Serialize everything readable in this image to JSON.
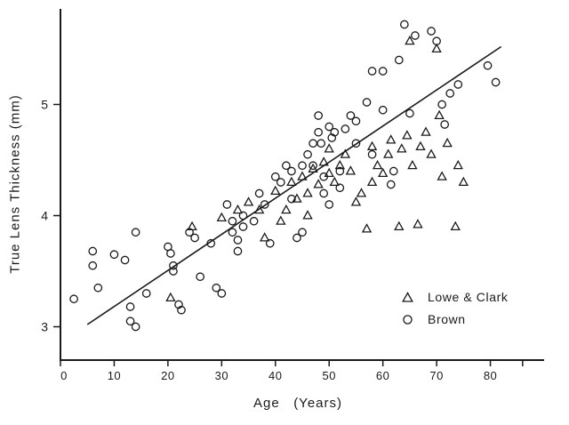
{
  "figure": {
    "background": "#ffffff",
    "ink_color": "#1a1a1a"
  },
  "chart_data": {
    "type": "scatter",
    "title": "",
    "xlabel": "Age   (Years)",
    "ylabel": "True Lens Thickness (mm)",
    "xlim": [
      0,
      90
    ],
    "ylim": [
      2.7,
      5.86
    ],
    "x_ticks": [
      0,
      10,
      20,
      30,
      40,
      50,
      60,
      70,
      80
    ],
    "x_minor_ticks": [
      86
    ],
    "y_ticks": [
      3,
      4,
      5
    ],
    "grid": false,
    "legend_position": "lower-right-inside",
    "series": [
      {
        "name": "Lowe & Clark",
        "marker": "triangle",
        "points": [
          [
            20.5,
            3.26
          ],
          [
            24.5,
            3.9
          ],
          [
            30,
            3.98
          ],
          [
            33,
            4.05
          ],
          [
            35,
            4.12
          ],
          [
            37,
            4.05
          ],
          [
            38,
            3.8
          ],
          [
            40,
            4.22
          ],
          [
            41,
            3.95
          ],
          [
            42,
            4.05
          ],
          [
            43,
            4.3
          ],
          [
            44,
            4.15
          ],
          [
            45,
            4.35
          ],
          [
            46,
            4.2
          ],
          [
            46,
            4.0
          ],
          [
            47,
            4.42
          ],
          [
            48,
            4.28
          ],
          [
            49,
            4.48
          ],
          [
            50,
            4.6
          ],
          [
            50,
            4.38
          ],
          [
            51,
            4.3
          ],
          [
            52,
            4.45
          ],
          [
            53,
            4.55
          ],
          [
            54,
            4.4
          ],
          [
            55,
            4.12
          ],
          [
            56,
            4.2
          ],
          [
            57,
            3.88
          ],
          [
            58,
            4.62
          ],
          [
            58,
            4.3
          ],
          [
            59,
            4.45
          ],
          [
            60,
            4.38
          ],
          [
            61,
            4.55
          ],
          [
            61.5,
            4.68
          ],
          [
            63,
            3.9
          ],
          [
            63.5,
            4.6
          ],
          [
            64.5,
            4.72
          ],
          [
            65,
            5.57
          ],
          [
            65.5,
            4.45
          ],
          [
            66.5,
            3.92
          ],
          [
            67,
            4.62
          ],
          [
            68,
            4.75
          ],
          [
            69,
            4.55
          ],
          [
            70,
            5.5
          ],
          [
            70.5,
            4.9
          ],
          [
            71,
            4.35
          ],
          [
            72,
            4.65
          ],
          [
            73.5,
            3.9
          ],
          [
            74,
            4.45
          ],
          [
            75,
            4.3
          ]
        ]
      },
      {
        "name": "Brown",
        "marker": "circle",
        "points": [
          [
            2.5,
            3.25
          ],
          [
            6,
            3.68
          ],
          [
            6,
            3.55
          ],
          [
            7,
            3.35
          ],
          [
            10,
            3.65
          ],
          [
            12,
            3.6
          ],
          [
            13,
            3.18
          ],
          [
            13,
            3.05
          ],
          [
            14,
            3.0
          ],
          [
            14,
            3.85
          ],
          [
            16,
            3.3
          ],
          [
            20,
            3.72
          ],
          [
            20.5,
            3.66
          ],
          [
            21,
            3.55
          ],
          [
            21,
            3.5
          ],
          [
            22,
            3.2
          ],
          [
            22.5,
            3.15
          ],
          [
            24,
            3.85
          ],
          [
            25,
            3.8
          ],
          [
            26,
            3.45
          ],
          [
            28,
            3.75
          ],
          [
            29,
            3.35
          ],
          [
            30,
            3.3
          ],
          [
            31,
            4.1
          ],
          [
            32,
            3.95
          ],
          [
            32,
            3.85
          ],
          [
            33,
            3.78
          ],
          [
            33,
            3.68
          ],
          [
            34,
            4.0
          ],
          [
            34,
            3.9
          ],
          [
            36,
            3.95
          ],
          [
            37,
            4.2
          ],
          [
            38,
            4.1
          ],
          [
            39,
            3.75
          ],
          [
            40,
            4.35
          ],
          [
            41,
            4.3
          ],
          [
            42,
            4.45
          ],
          [
            43,
            4.4
          ],
          [
            43,
            4.15
          ],
          [
            44,
            3.8
          ],
          [
            45,
            3.85
          ],
          [
            45,
            4.45
          ],
          [
            46,
            4.55
          ],
          [
            47,
            4.65
          ],
          [
            47,
            4.45
          ],
          [
            48,
            4.9
          ],
          [
            48,
            4.75
          ],
          [
            48.5,
            4.65
          ],
          [
            49,
            4.35
          ],
          [
            49,
            4.2
          ],
          [
            50,
            4.1
          ],
          [
            50,
            4.8
          ],
          [
            50.5,
            4.7
          ],
          [
            51,
            4.75
          ],
          [
            52,
            4.4
          ],
          [
            52,
            4.25
          ],
          [
            53,
            4.78
          ],
          [
            54,
            4.9
          ],
          [
            55,
            4.85
          ],
          [
            55,
            4.65
          ],
          [
            57,
            5.02
          ],
          [
            58,
            4.55
          ],
          [
            58,
            5.3
          ],
          [
            60,
            4.95
          ],
          [
            60,
            5.3
          ],
          [
            61.5,
            4.28
          ],
          [
            62,
            4.4
          ],
          [
            63,
            5.4
          ],
          [
            64,
            5.72
          ],
          [
            65,
            4.92
          ],
          [
            66,
            5.62
          ],
          [
            69,
            5.66
          ],
          [
            70,
            5.57
          ],
          [
            71,
            5.0
          ],
          [
            71.5,
            4.82
          ],
          [
            72.5,
            5.1
          ],
          [
            74,
            5.18
          ],
          [
            79.5,
            5.35
          ],
          [
            81,
            5.2
          ]
        ]
      }
    ],
    "trend_line": {
      "x1": 5,
      "y1": 3.02,
      "x2": 82,
      "y2": 5.52
    }
  }
}
